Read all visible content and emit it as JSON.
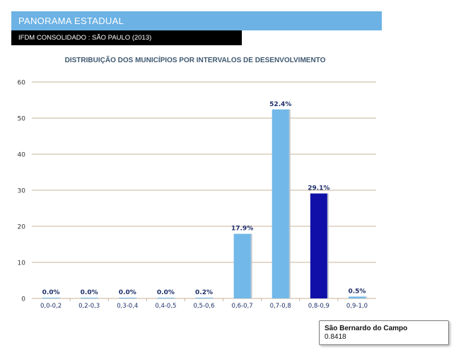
{
  "header": {
    "title": "PANORAMA ESTADUAL",
    "subtitle": "IFDM CONSOLIDADO :  SÃO PAULO (2013)"
  },
  "colors": {
    "header_bg": "#6cb2e4",
    "bar": "#72b8e8",
    "bar_highlight": "#1010a8",
    "grid": "#c9b39a",
    "title": "#3e5870",
    "label": "#1e2f6a"
  },
  "chart_data": {
    "type": "bar",
    "title": "DISTRIBUIÇÃO DOS MUNICÍPIOS POR INTERVALOS DE DESENVOLVIMENTO",
    "xlabel": "",
    "ylabel": "",
    "ylim": [
      0,
      60
    ],
    "yticks": [
      "0",
      "10",
      "20",
      "30",
      "40",
      "50",
      "60"
    ],
    "grid": true,
    "categories": [
      "0,0-0,2",
      "0,2-0,3",
      "0,3-0,4",
      "0,4-0,5",
      "0,5-0,6",
      "0,6-0,7",
      "0,7-0,8",
      "0,8-0,9",
      "0,9-1,0"
    ],
    "values": [
      0.0,
      0.0,
      0.0,
      0.0,
      0.2,
      17.9,
      52.4,
      29.1,
      0.5
    ],
    "data_labels": [
      "0.0%",
      "0.0%",
      "0.0%",
      "0.0%",
      "0.2%",
      "17.9%",
      "52.4%",
      "29.1%",
      "0.5%"
    ],
    "highlight_index": 7
  },
  "tooltip": {
    "name": "São Bernardo do Campo",
    "value": "0.8418"
  }
}
